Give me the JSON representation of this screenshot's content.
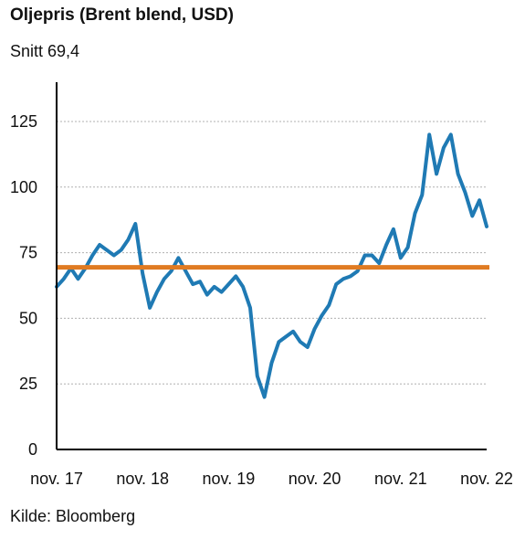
{
  "header": {
    "title": "Oljepris (Brent blend, USD)",
    "subtitle": "Snitt 69,4"
  },
  "footer": {
    "source": "Kilde: Bloomberg"
  },
  "colors": {
    "series": "#1f7ab4",
    "average": "#e07b22",
    "grid": "#b0b0b0",
    "axis": "#000000"
  },
  "chart_data": {
    "type": "line",
    "title": "Oljepris (Brent blend, USD)",
    "subtitle": "Snitt 69,4",
    "xlabel": "",
    "ylabel": "",
    "ylim": [
      0,
      125
    ],
    "yticks": [
      0,
      25,
      50,
      75,
      100,
      125
    ],
    "xticks": [
      "nov. 17",
      "nov. 18",
      "nov. 19",
      "nov. 20",
      "nov. 21",
      "nov. 22"
    ],
    "xrange": [
      "2017-11",
      "2022-11"
    ],
    "grid": true,
    "legend": "none",
    "average_line": 69.4,
    "series": [
      {
        "name": "",
        "points": [
          [
            "2017-11",
            62
          ],
          [
            "2017-12",
            65
          ],
          [
            "2018-01",
            69
          ],
          [
            "2018-02",
            65
          ],
          [
            "2018-03",
            69
          ],
          [
            "2018-04",
            74
          ],
          [
            "2018-05",
            78
          ],
          [
            "2018-06",
            76
          ],
          [
            "2018-07",
            74
          ],
          [
            "2018-08",
            76
          ],
          [
            "2018-09",
            80
          ],
          [
            "2018-10",
            86
          ],
          [
            "2018-11",
            67
          ],
          [
            "2018-12",
            54
          ],
          [
            "2019-01",
            60
          ],
          [
            "2019-02",
            65
          ],
          [
            "2019-03",
            68
          ],
          [
            "2019-04",
            73
          ],
          [
            "2019-05",
            68
          ],
          [
            "2019-06",
            63
          ],
          [
            "2019-07",
            64
          ],
          [
            "2019-08",
            59
          ],
          [
            "2019-09",
            62
          ],
          [
            "2019-10",
            60
          ],
          [
            "2019-11",
            63
          ],
          [
            "2019-12",
            66
          ],
          [
            "2020-01",
            62
          ],
          [
            "2020-02",
            54
          ],
          [
            "2020-03",
            28
          ],
          [
            "2020-04",
            20
          ],
          [
            "2020-05",
            33
          ],
          [
            "2020-06",
            41
          ],
          [
            "2020-07",
            43
          ],
          [
            "2020-08",
            45
          ],
          [
            "2020-09",
            41
          ],
          [
            "2020-10",
            39
          ],
          [
            "2020-11",
            46
          ],
          [
            "2020-12",
            51
          ],
          [
            "2021-01",
            55
          ],
          [
            "2021-02",
            63
          ],
          [
            "2021-03",
            65
          ],
          [
            "2021-04",
            66
          ],
          [
            "2021-05",
            68
          ],
          [
            "2021-06",
            74
          ],
          [
            "2021-07",
            74
          ],
          [
            "2021-08",
            71
          ],
          [
            "2021-09",
            78
          ],
          [
            "2021-10",
            84
          ],
          [
            "2021-11",
            73
          ],
          [
            "2021-12",
            77
          ],
          [
            "2022-01",
            90
          ],
          [
            "2022-02",
            97
          ],
          [
            "2022-03",
            120
          ],
          [
            "2022-04",
            105
          ],
          [
            "2022-05",
            115
          ],
          [
            "2022-06",
            120
          ],
          [
            "2022-07",
            105
          ],
          [
            "2022-08",
            98
          ],
          [
            "2022-09",
            89
          ],
          [
            "2022-10",
            95
          ],
          [
            "2022-11",
            85
          ]
        ]
      }
    ]
  }
}
